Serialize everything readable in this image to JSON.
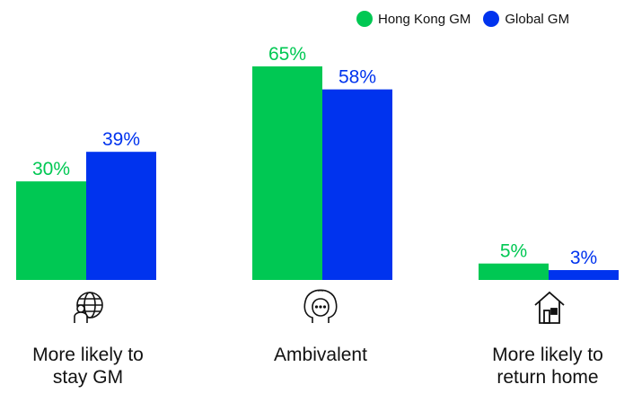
{
  "colors": {
    "hong_kong": "#00c853",
    "global": "#0033ee"
  },
  "legend": {
    "hong_kong": "Hong Kong GM",
    "global": "Global GM"
  },
  "categories": [
    {
      "line1": "More likely to",
      "line2": "stay GM",
      "icon": "globe-person-icon"
    },
    {
      "line1": "Ambivalent",
      "line2": "",
      "icon": "two-heads-thinking-icon"
    },
    {
      "line1": "More likely to",
      "line2": "return home",
      "icon": "house-icon"
    }
  ],
  "chart_data": {
    "type": "bar",
    "categories": [
      "More likely to stay GM",
      "Ambivalent",
      "More likely to return home"
    ],
    "series": [
      {
        "name": "Hong Kong GM",
        "values": [
          30,
          65,
          5
        ],
        "labels": [
          "30%",
          "65%",
          "5%"
        ]
      },
      {
        "name": "Global GM",
        "values": [
          39,
          58,
          3
        ],
        "labels": [
          "39%",
          "58%",
          "3%"
        ]
      }
    ],
    "ylim": [
      0,
      100
    ],
    "grid": false,
    "legend_position": "top-right"
  }
}
